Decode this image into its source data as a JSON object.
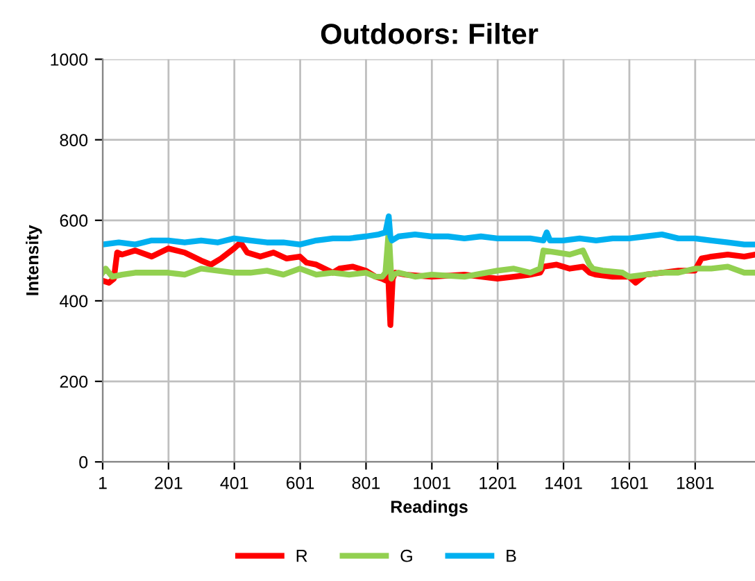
{
  "chart_data": {
    "type": "line",
    "title": "Outdoors: Filter",
    "xlabel": "Readings",
    "ylabel": "Intensity",
    "xlim": [
      1,
      1985
    ],
    "xticks": [
      1,
      201,
      401,
      601,
      801,
      1001,
      1201,
      1401,
      1601,
      1801
    ],
    "ylim": [
      0,
      1000
    ],
    "yticks": [
      0,
      200,
      400,
      600,
      800,
      1000
    ],
    "grid": true,
    "legend": "bottom",
    "marker": "none",
    "line_style": "solid",
    "series": [
      {
        "name": "R",
        "color": "#ff0000",
        "x": [
          1,
          20,
          35,
          45,
          60,
          100,
          150,
          200,
          250,
          300,
          330,
          360,
          400,
          420,
          440,
          480,
          520,
          560,
          600,
          620,
          650,
          700,
          720,
          760,
          800,
          830,
          850,
          862,
          868,
          875,
          882,
          890,
          920,
          1000,
          1100,
          1200,
          1250,
          1300,
          1330,
          1340,
          1380,
          1420,
          1460,
          1480,
          1500,
          1550,
          1600,
          1620,
          1650,
          1700,
          1750,
          1800,
          1820,
          1850,
          1900,
          1950,
          1985
        ],
        "values": [
          450,
          445,
          455,
          520,
          515,
          525,
          510,
          530,
          520,
          500,
          490,
          505,
          530,
          545,
          520,
          510,
          520,
          505,
          510,
          495,
          490,
          470,
          480,
          485,
          475,
          460,
          455,
          450,
          470,
          340,
          455,
          470,
          465,
          460,
          465,
          455,
          460,
          465,
          470,
          485,
          490,
          480,
          485,
          470,
          465,
          460,
          460,
          445,
          465,
          470,
          475,
          475,
          505,
          510,
          515,
          510,
          515
        ]
      },
      {
        "name": "G",
        "color": "#92d050",
        "x": [
          1,
          10,
          30,
          60,
          100,
          150,
          200,
          250,
          300,
          350,
          400,
          450,
          500,
          550,
          600,
          650,
          700,
          750,
          800,
          830,
          850,
          860,
          870,
          878,
          885,
          900,
          950,
          1000,
          1100,
          1200,
          1250,
          1300,
          1330,
          1340,
          1380,
          1420,
          1460,
          1480,
          1490,
          1520,
          1580,
          1600,
          1650,
          1700,
          1750,
          1800,
          1850,
          1900,
          1950,
          1985
        ],
        "values": [
          470,
          480,
          460,
          465,
          470,
          470,
          470,
          465,
          480,
          475,
          470,
          470,
          475,
          465,
          480,
          465,
          470,
          465,
          470,
          460,
          460,
          470,
          575,
          455,
          465,
          470,
          460,
          465,
          460,
          475,
          480,
          470,
          480,
          525,
          520,
          515,
          525,
          490,
          480,
          475,
          470,
          460,
          465,
          470,
          470,
          480,
          480,
          485,
          470,
          470
        ]
      },
      {
        "name": "B",
        "color": "#00b0f0",
        "x": [
          1,
          50,
          100,
          150,
          200,
          250,
          300,
          350,
          400,
          450,
          500,
          550,
          600,
          650,
          700,
          750,
          800,
          840,
          860,
          870,
          875,
          880,
          900,
          950,
          1000,
          1050,
          1100,
          1150,
          1200,
          1250,
          1300,
          1340,
          1350,
          1360,
          1400,
          1450,
          1500,
          1550,
          1600,
          1650,
          1700,
          1750,
          1800,
          1850,
          1900,
          1950,
          1985
        ],
        "values": [
          540,
          545,
          540,
          550,
          550,
          545,
          550,
          545,
          555,
          550,
          545,
          545,
          540,
          550,
          555,
          555,
          560,
          565,
          570,
          610,
          560,
          550,
          560,
          565,
          560,
          560,
          555,
          560,
          555,
          555,
          555,
          550,
          570,
          550,
          550,
          555,
          550,
          555,
          555,
          560,
          565,
          555,
          555,
          550,
          545,
          540,
          540
        ]
      }
    ]
  }
}
